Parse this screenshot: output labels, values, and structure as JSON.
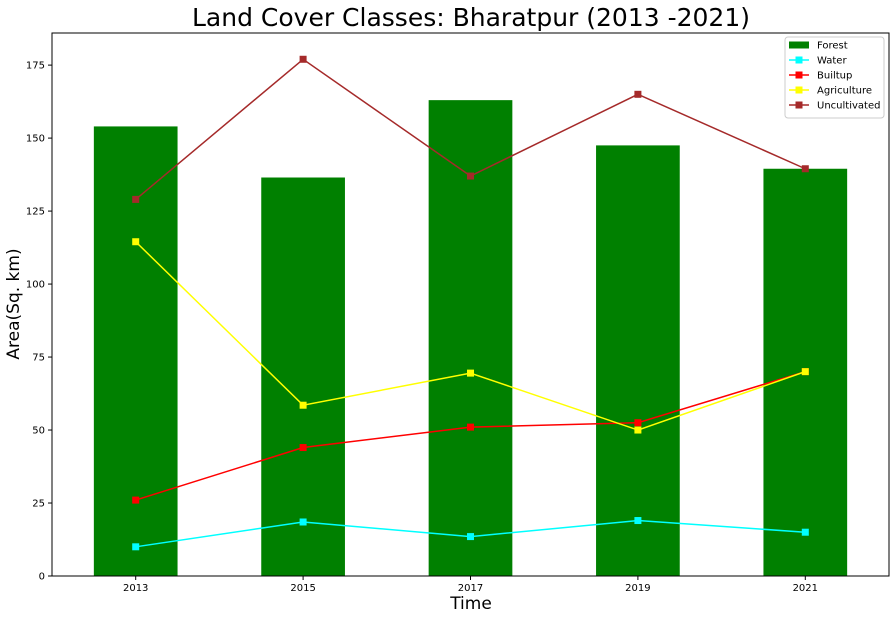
{
  "chart_data": {
    "type": "bar",
    "title": "Land Cover Classes: Bharatpur (2013 -2021)",
    "xlabel": "Time",
    "ylabel": "Area(Sq. km)",
    "categories": [
      "2013",
      "2015",
      "2017",
      "2019",
      "2021"
    ],
    "ylim": [
      0,
      186
    ],
    "yticks": [
      0,
      25,
      50,
      75,
      100,
      125,
      150,
      175
    ],
    "grid": false,
    "legend_position": "top-right",
    "series": [
      {
        "name": "Forest",
        "kind": "bar",
        "color": "#008000",
        "values": [
          154,
          136.5,
          163,
          147.5,
          139.5
        ]
      },
      {
        "name": "Water",
        "kind": "line",
        "color": "#00ffff",
        "values": [
          10,
          18.5,
          13.5,
          19,
          15
        ]
      },
      {
        "name": "Builtup",
        "kind": "line",
        "color": "#ff0000",
        "values": [
          26,
          44,
          51,
          52.5,
          70
        ]
      },
      {
        "name": "Agriculture",
        "kind": "line",
        "color": "#ffff00",
        "values": [
          114.5,
          58.5,
          69.5,
          50,
          70
        ]
      },
      {
        "name": "Uncultivated",
        "kind": "line",
        "color": "#a52a2a",
        "values": [
          129,
          177,
          137,
          165,
          139.5
        ]
      }
    ]
  }
}
